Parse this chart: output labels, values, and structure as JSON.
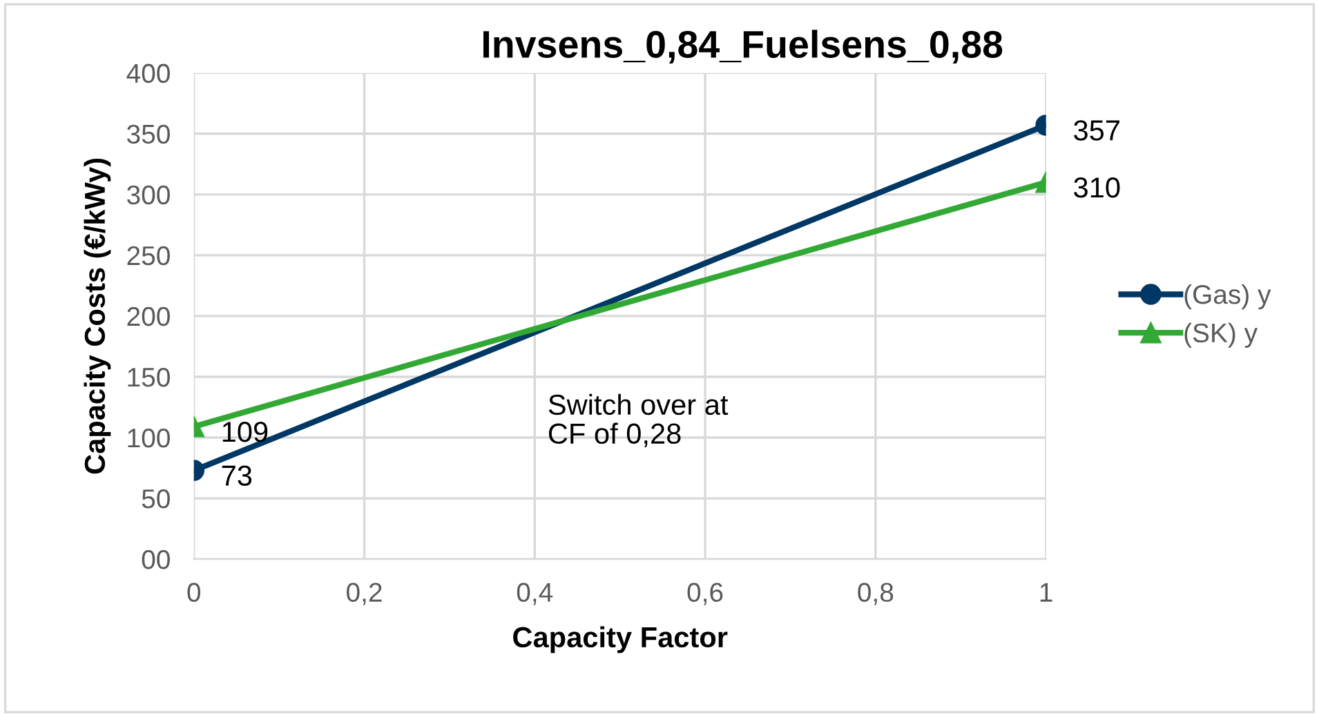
{
  "chart_data": {
    "type": "line",
    "title": "Invsens_0,84_Fuelsens_0,88",
    "xlabel": "Capacity Factor",
    "ylabel": "Capacity Costs (€/kWy)",
    "x": [
      0,
      1
    ],
    "series": [
      {
        "name": "(Gas) y",
        "color": "#003865",
        "marker": "circle",
        "values": [
          73,
          357
        ]
      },
      {
        "name": "(SK) y",
        "color": "#33a935",
        "marker": "triangle",
        "values": [
          109,
          310
        ]
      }
    ],
    "xlim": [
      0,
      1
    ],
    "xticks": [
      0,
      {
        "value": 0.2,
        "label": "0,2"
      },
      {
        "value": 0.4,
        "label": "0,4"
      },
      {
        "value": 0.6,
        "label": "0,6"
      },
      {
        "value": 0.8,
        "label": "0,8"
      },
      1
    ],
    "ylim": [
      0,
      400
    ],
    "yticks": [
      {
        "value": 0,
        "label": "00"
      },
      50,
      100,
      150,
      200,
      250,
      300,
      350,
      400
    ],
    "grid": true,
    "legend": "right",
    "data_labels": true,
    "line_style": "solid",
    "annotations": [
      "Switch over at\nCF of 0,28"
    ]
  }
}
